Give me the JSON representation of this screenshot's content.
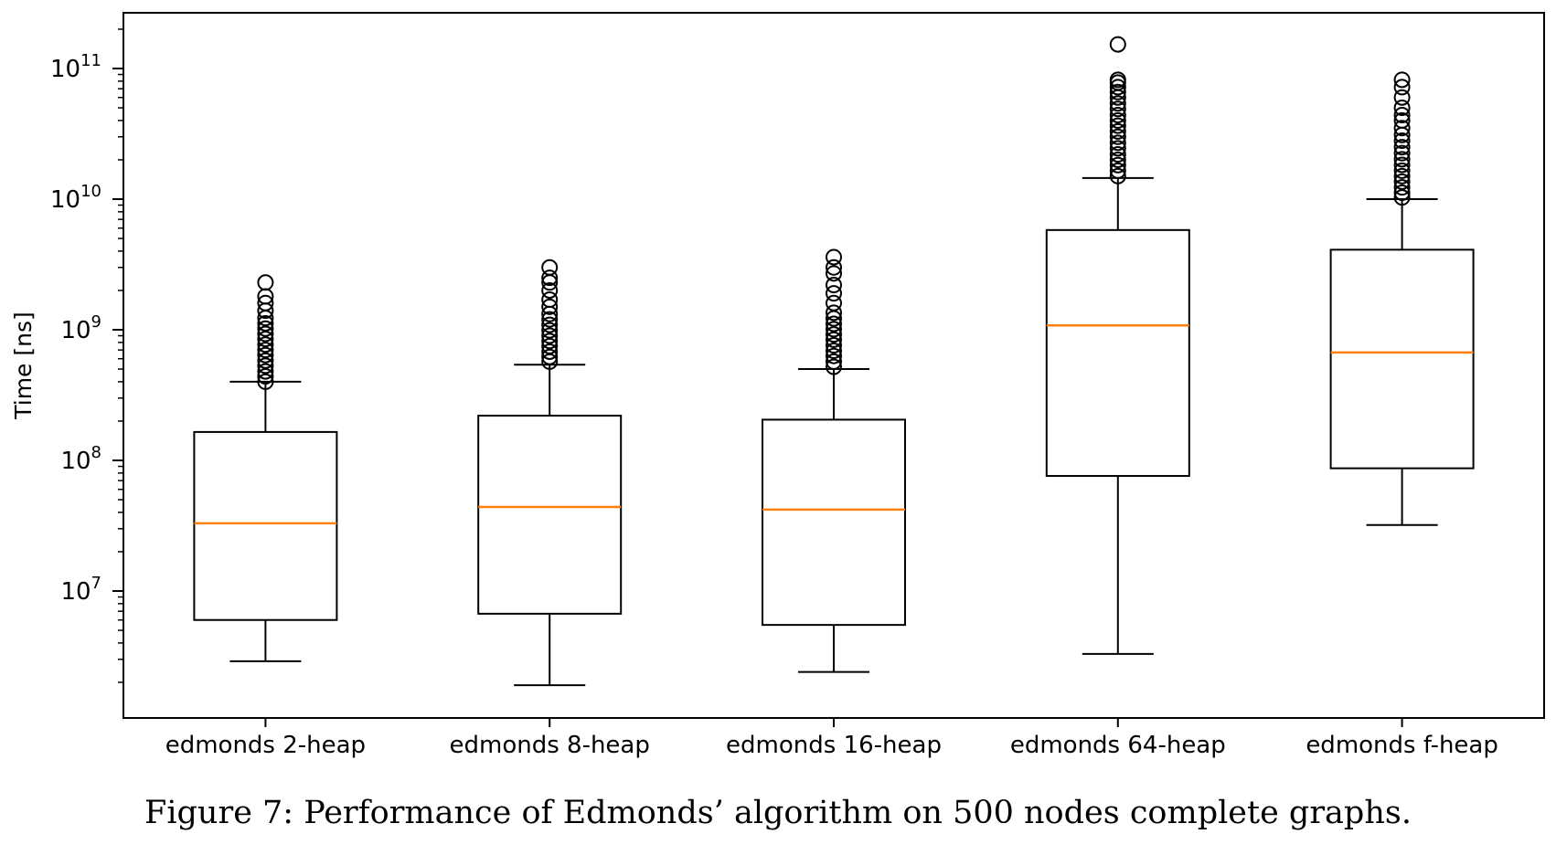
{
  "chart_data": {
    "type": "boxplot",
    "yscale": "log",
    "ylabel": "Time [ns]",
    "ylim": [
      1500000,
      250000000000
    ],
    "ytick_labels": [
      {
        "base": "10",
        "exp": "7",
        "value": 10000000
      },
      {
        "base": "10",
        "exp": "8",
        "value": 100000000
      },
      {
        "base": "10",
        "exp": "9",
        "value": 1000000000
      },
      {
        "base": "10",
        "exp": "10",
        "value": 10000000000
      },
      {
        "base": "10",
        "exp": "11",
        "value": 100000000000
      }
    ],
    "categories": [
      "edmonds 2-heap",
      "edmonds 8-heap",
      "edmonds 16-heap",
      "edmonds 64-heap",
      "edmonds f-heap"
    ],
    "boxes": [
      {
        "whisker_low": 2900000,
        "q1": 6000000,
        "median": 33000000,
        "q3": 165000000,
        "whisker_high": 400000000,
        "outliers": [
          400000000,
          440000000,
          480000000,
          530000000,
          580000000,
          640000000,
          700000000,
          770000000,
          850000000,
          930000000,
          1020000000,
          1120000000,
          1230000000,
          1400000000,
          1600000000,
          1800000000,
          2300000000
        ]
      },
      {
        "whisker_low": 1900000,
        "q1": 6700000,
        "median": 44000000,
        "q3": 220000000,
        "whisker_high": 540000000,
        "outliers": [
          570000000,
          620000000,
          680000000,
          750000000,
          820000000,
          900000000,
          990000000,
          1090000000,
          1200000000,
          1320000000,
          1500000000,
          1700000000,
          2000000000,
          2300000000,
          2500000000,
          3000000000
        ]
      },
      {
        "whisker_low": 2400000,
        "q1": 5500000,
        "median": 42000000,
        "q3": 205000000,
        "whisker_high": 500000000,
        "outliers": [
          520000000,
          570000000,
          630000000,
          690000000,
          760000000,
          840000000,
          920000000,
          1010000000,
          1110000000,
          1220000000,
          1350000000,
          1600000000,
          1900000000,
          2200000000,
          2700000000,
          3000000000,
          3600000000
        ]
      },
      {
        "whisker_low": 3300000,
        "q1": 76000000,
        "median": 1080000000,
        "q3": 5800000000,
        "whisker_high": 14500000000,
        "outliers": [
          15000000000,
          16500000000,
          18200000000,
          20000000000,
          22000000000,
          24500000000,
          27000000000,
          30000000000,
          33000000000,
          36500000000,
          40000000000,
          44000000000,
          49000000000,
          54000000000,
          60000000000,
          66000000000,
          72000000000,
          78000000000,
          82000000000,
          153000000000
        ]
      },
      {
        "whisker_low": 32000000,
        "q1": 87000000,
        "median": 670000000,
        "q3": 4100000000,
        "whisker_high": 10000000000,
        "outliers": [
          10300000000,
          11200000000,
          12300000000,
          13600000000,
          15000000000,
          16500000000,
          18300000000,
          20200000000,
          22500000000,
          25000000000,
          28000000000,
          31000000000,
          35000000000,
          40000000000,
          44000000000,
          50000000000,
          60000000000,
          72000000000,
          82000000000
        ]
      }
    ],
    "colors": {
      "box": "#000000",
      "median": "#ff7f0e",
      "background": "#ffffff"
    }
  },
  "caption": "Figure 7:  Performance of Edmonds’ algorithm on 500 nodes complete graphs."
}
